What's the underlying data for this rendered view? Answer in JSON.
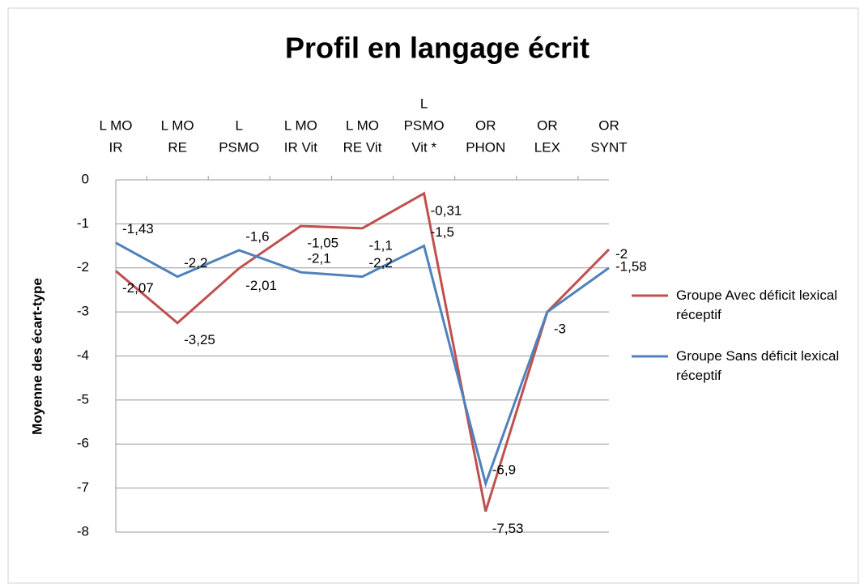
{
  "chart_data": {
    "type": "line",
    "title": "Profil en langage écrit",
    "y_label": "Moyenne des écart-type",
    "categories": [
      [
        "L MO",
        "IR"
      ],
      [
        "L MO",
        "RE"
      ],
      [
        "L",
        "PSMO"
      ],
      [
        "L MO",
        "IR Vit"
      ],
      [
        "L MO",
        "RE Vit"
      ],
      [
        "L",
        "PSMO",
        "Vit *"
      ],
      [
        "OR",
        "PHON"
      ],
      [
        "OR",
        "LEX"
      ],
      [
        "OR",
        "SYNT"
      ]
    ],
    "series": [
      {
        "name": "Groupe Avec déficit lexical réceptif",
        "color": "#c0504d",
        "values": [
          -2.07,
          -3.25,
          -2.01,
          -1.05,
          -1.1,
          -0.31,
          -7.53,
          -3,
          -1.58
        ],
        "value_labels": [
          "-2,07",
          "-3,25",
          "-2,01",
          "-1,05",
          "-1,1",
          "-0,31",
          "-7,53",
          "-3",
          "-1,58"
        ]
      },
      {
        "name": "Groupe Sans déficit lexical réceptif",
        "color": "#4f81bd",
        "values": [
          -1.43,
          -2.2,
          -1.6,
          -2.1,
          -2.2,
          -1.5,
          -6.9,
          -3,
          -2
        ],
        "value_labels": [
          "-1,43",
          "-2,2",
          "-1,6",
          "-2,1",
          "-2,2",
          "-1,5",
          "-6,9",
          null,
          "-2"
        ]
      }
    ],
    "ylim": [
      -8,
      0
    ],
    "yticks": [
      0,
      -1,
      -2,
      -3,
      -4,
      -5,
      -6,
      -7,
      -8
    ],
    "grid": true,
    "legend": "right"
  }
}
